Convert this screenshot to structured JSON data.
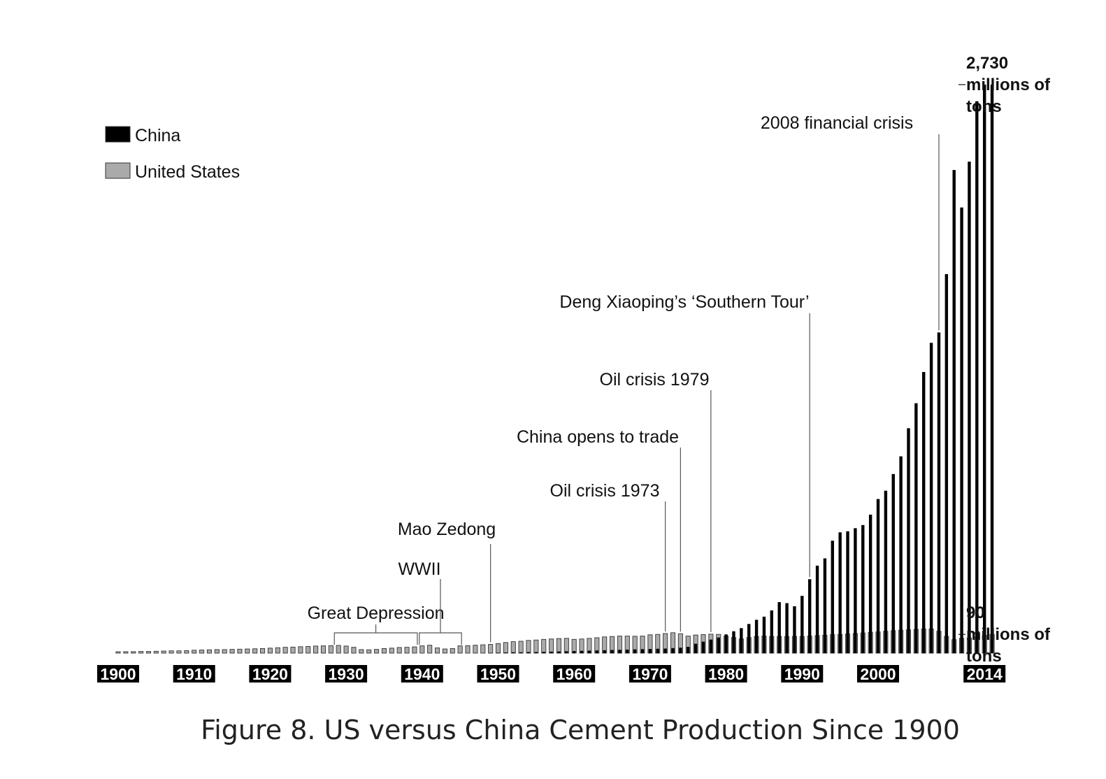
{
  "caption": "Figure 8.  US versus China Cement Production Since 1900",
  "chart_data": {
    "type": "bar",
    "legend_position": "top-left",
    "grid": false,
    "ylim": [
      0,
      2800
    ],
    "x_ticks": [
      "1900",
      "1910",
      "1920",
      "1930",
      "1940",
      "1950",
      "1960",
      "1970",
      "1980",
      "1990",
      "2000",
      "2014"
    ],
    "start_year": 1900,
    "series": [
      {
        "name": "China",
        "color": "#000000",
        "values": [
          0,
          0,
          0,
          0,
          0,
          0,
          0,
          0,
          0,
          0,
          0,
          0,
          0,
          0,
          0,
          0,
          0,
          0,
          0,
          0,
          0,
          0,
          0,
          0,
          0,
          0,
          0,
          0,
          0,
          0,
          0,
          0,
          0,
          0,
          0,
          0,
          0,
          0,
          0,
          0,
          0,
          0,
          0,
          0,
          0,
          0,
          0,
          0,
          0,
          1,
          2,
          3,
          4,
          4,
          5,
          5,
          6,
          7,
          8,
          9,
          10,
          11,
          12,
          13,
          14,
          15,
          16,
          17,
          18,
          19,
          20,
          21,
          22,
          24,
          26,
          30,
          45,
          55,
          65,
          75,
          90,
          105,
          120,
          140,
          160,
          175,
          205,
          245,
          240,
          225,
          275,
          355,
          420,
          455,
          540,
          580,
          585,
          600,
          615,
          665,
          740,
          780,
          860,
          945,
          1080,
          1200,
          1350,
          1490,
          1540,
          1820,
          2320,
          2140,
          2360,
          2650,
          2730,
          2730
        ]
      },
      {
        "name": "United States",
        "color": "#aaaaaa",
        "values": [
          6,
          7,
          7,
          8,
          8,
          9,
          10,
          11,
          11,
          12,
          14,
          15,
          16,
          17,
          17,
          18,
          19,
          20,
          21,
          22,
          24,
          26,
          28,
          29,
          31,
          32,
          34,
          35,
          36,
          37,
          34,
          28,
          17,
          16,
          18,
          22,
          24,
          27,
          28,
          30,
          35,
          38,
          25,
          20,
          22,
          35,
          36,
          38,
          40,
          42,
          46,
          51,
          55,
          57,
          61,
          63,
          66,
          68,
          70,
          71,
          66,
          68,
          71,
          74,
          78,
          80,
          82,
          82,
          81,
          82,
          88,
          90,
          94,
          98,
          93,
          82,
          87,
          89,
          91,
          90,
          82,
          75,
          68,
          75,
          80,
          82,
          80,
          80,
          80,
          80,
          80,
          82,
          84,
          86,
          89,
          90,
          92,
          94,
          97,
          100,
          102,
          105,
          108,
          110,
          112,
          114,
          116,
          116,
          105,
          80,
          65,
          71,
          73,
          78,
          85,
          90
        ]
      }
    ],
    "annotations": [
      {
        "label": "Great Depression",
        "start": 1929,
        "end": 1939
      },
      {
        "label": "WWII",
        "start": 1940,
        "end": 1945
      },
      {
        "label": "Mao Zedong",
        "year": 1949
      },
      {
        "label": "Oil crisis 1973",
        "year": 1972
      },
      {
        "label": "China opens to trade",
        "year": 1974
      },
      {
        "label": "Oil crisis 1979",
        "year": 1978
      },
      {
        "label": "Deng Xiaoping’s ‘Southern Tour’",
        "year": 1991
      },
      {
        "label": "2008 financial crisis",
        "year": 2008
      }
    ],
    "end_labels": [
      {
        "lines": [
          "2,730",
          "millions of",
          "tons"
        ],
        "value": 2730
      },
      {
        "lines": [
          "90",
          "millions of",
          "tons"
        ],
        "value": 90
      }
    ]
  }
}
